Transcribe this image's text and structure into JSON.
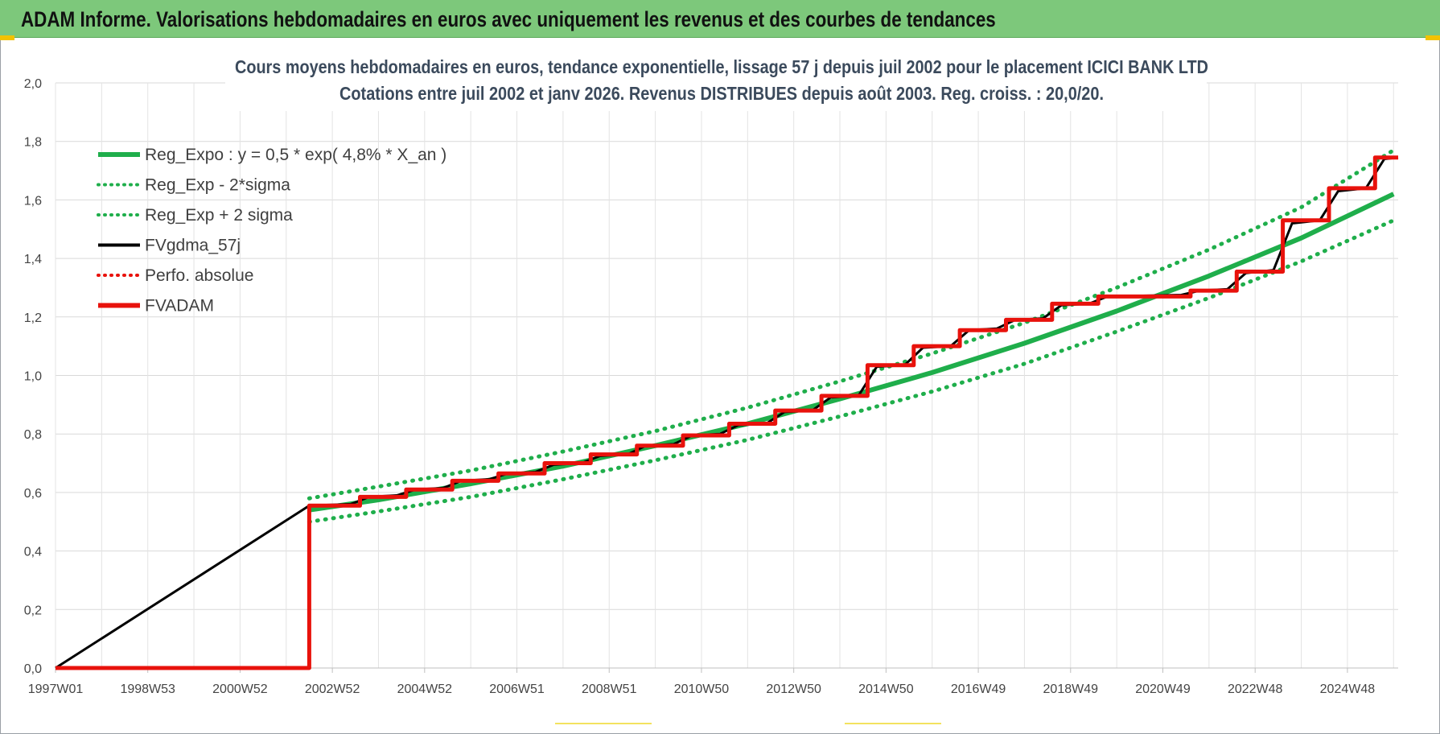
{
  "header": {
    "title": "ADAM Informe. Valorisations hebdomadaires en euros avec uniquement les revenus et des courbes de tendances"
  },
  "chart_data": {
    "type": "line",
    "title_lines": [
      "Cours moyens hebdomadaires en euros, tendance exponentielle, lissage 57 j depuis juil 2002 pour le placement ICICI BANK LTD",
      "Cotations entre juil 2002 et janv 2026. Revenus DISTRIBUES depuis août 2003. Reg. croiss. : 20,0/20."
    ],
    "x_range": [
      1997.0,
      2026.1
    ],
    "ylim": [
      0,
      2
    ],
    "y_ticks": [
      "0,0",
      "0,2",
      "0,4",
      "0,6",
      "0,8",
      "1,0",
      "1,2",
      "1,4",
      "1,6",
      "1,8",
      "2,0"
    ],
    "x_ticks": [
      {
        "label": "1997W01",
        "x": 1997.0
      },
      {
        "label": "1998W53",
        "x": 1999.0
      },
      {
        "label": "2000W52",
        "x": 2001.0
      },
      {
        "label": "2002W52",
        "x": 2003.0
      },
      {
        "label": "2004W52",
        "x": 2005.0
      },
      {
        "label": "2006W51",
        "x": 2007.0
      },
      {
        "label": "2008W51",
        "x": 2009.0
      },
      {
        "label": "2010W50",
        "x": 2011.0
      },
      {
        "label": "2012W50",
        "x": 2013.0
      },
      {
        "label": "2014W50",
        "x": 2015.0
      },
      {
        "label": "2016W49",
        "x": 2017.0
      },
      {
        "label": "2018W49",
        "x": 2019.0
      },
      {
        "label": "2020W49",
        "x": 2021.0
      },
      {
        "label": "2022W48",
        "x": 2023.0
      },
      {
        "label": "2024W48",
        "x": 2025.0
      }
    ],
    "grid": true,
    "legend_position": "top-left",
    "series": [
      {
        "name": "Reg_Expo : y = 0,5 * exp( 4,8% *  X_an )",
        "color": "#1fae4b",
        "style": "solid",
        "x": [
          2002.5,
          2004.0,
          2006.0,
          2008.0,
          2010.0,
          2012.0,
          2014.0,
          2016.0,
          2018.0,
          2020.0,
          2022.0,
          2024.0,
          2026.0
        ],
        "y": [
          0.54,
          0.575,
          0.63,
          0.69,
          0.76,
          0.835,
          0.92,
          1.01,
          1.11,
          1.22,
          1.34,
          1.47,
          1.62
        ]
      },
      {
        "name": "Reg_Exp - 2*sigma",
        "color": "#1fae4b",
        "style": "dotted",
        "x": [
          2002.5,
          2004.0,
          2006.0,
          2008.0,
          2010.0,
          2012.0,
          2014.0,
          2016.0,
          2018.0,
          2020.0,
          2022.0,
          2024.0,
          2026.0
        ],
        "y": [
          0.5,
          0.535,
          0.585,
          0.645,
          0.71,
          0.78,
          0.86,
          0.945,
          1.04,
          1.15,
          1.265,
          1.39,
          1.53
        ]
      },
      {
        "name": "Reg_Exp + 2 sigma",
        "color": "#1fae4b",
        "style": "dotted",
        "x": [
          2002.5,
          2004.0,
          2006.0,
          2008.0,
          2010.0,
          2012.0,
          2014.0,
          2016.0,
          2018.0,
          2020.0,
          2022.0,
          2024.0,
          2026.0
        ],
        "y": [
          0.58,
          0.62,
          0.675,
          0.74,
          0.81,
          0.89,
          0.98,
          1.075,
          1.18,
          1.3,
          1.43,
          1.575,
          1.77
        ]
      },
      {
        "name": "FVgdma_57j",
        "color": "#000000",
        "style": "solid",
        "x": [
          1997.0,
          2002.5,
          2003.4,
          2003.8,
          2004.4,
          2004.8,
          2005.4,
          2005.8,
          2006.4,
          2006.8,
          2007.4,
          2007.8,
          2008.4,
          2008.8,
          2009.4,
          2009.8,
          2010.4,
          2010.8,
          2011.4,
          2011.8,
          2012.4,
          2012.8,
          2013.4,
          2013.8,
          2014.4,
          2014.8,
          2015.4,
          2015.8,
          2016.4,
          2016.8,
          2017.4,
          2017.8,
          2018.4,
          2018.8,
          2019.4,
          2019.8,
          2021.4,
          2021.8,
          2022.4,
          2022.8,
          2023.4,
          2023.8,
          2024.4,
          2024.8,
          2025.4,
          2025.8,
          2026.1
        ],
        "y": [
          0,
          0.555,
          0.56,
          0.585,
          0.59,
          0.61,
          0.615,
          0.64,
          0.645,
          0.665,
          0.67,
          0.695,
          0.7,
          0.725,
          0.73,
          0.76,
          0.765,
          0.795,
          0.8,
          0.83,
          0.835,
          0.875,
          0.88,
          0.925,
          0.93,
          1.03,
          1.035,
          1.095,
          1.1,
          1.155,
          1.16,
          1.19,
          1.195,
          1.24,
          1.245,
          1.27,
          1.275,
          1.29,
          1.295,
          1.35,
          1.36,
          1.52,
          1.53,
          1.63,
          1.64,
          1.74,
          1.745
        ]
      },
      {
        "name": "Perfo. absolue",
        "color": "#e8120c",
        "style": "dotted",
        "x": [],
        "y": []
      },
      {
        "name": "FVADAM",
        "color": "#e8120c",
        "style": "solid-step",
        "x": [
          1997.0,
          2002.5,
          2002.5,
          2003.6,
          2003.6,
          2004.6,
          2004.6,
          2005.6,
          2005.6,
          2006.6,
          2006.6,
          2007.6,
          2007.6,
          2008.6,
          2008.6,
          2009.6,
          2009.6,
          2010.6,
          2010.6,
          2011.6,
          2011.6,
          2012.6,
          2012.6,
          2013.6,
          2013.6,
          2014.6,
          2014.6,
          2015.6,
          2015.6,
          2016.6,
          2016.6,
          2017.6,
          2017.6,
          2018.6,
          2018.6,
          2019.6,
          2019.6,
          2021.6,
          2021.6,
          2022.6,
          2022.6,
          2023.6,
          2023.6,
          2024.6,
          2024.6,
          2025.6,
          2025.6,
          2026.1
        ],
        "y": [
          0,
          0,
          0.555,
          0.555,
          0.585,
          0.585,
          0.61,
          0.61,
          0.64,
          0.64,
          0.665,
          0.665,
          0.7,
          0.7,
          0.73,
          0.73,
          0.76,
          0.76,
          0.795,
          0.795,
          0.835,
          0.835,
          0.88,
          0.88,
          0.93,
          0.93,
          1.035,
          1.035,
          1.1,
          1.1,
          1.155,
          1.155,
          1.19,
          1.19,
          1.245,
          1.245,
          1.27,
          1.27,
          1.29,
          1.29,
          1.355,
          1.355,
          1.53,
          1.53,
          1.64,
          1.64,
          1.745,
          1.745
        ]
      }
    ]
  }
}
